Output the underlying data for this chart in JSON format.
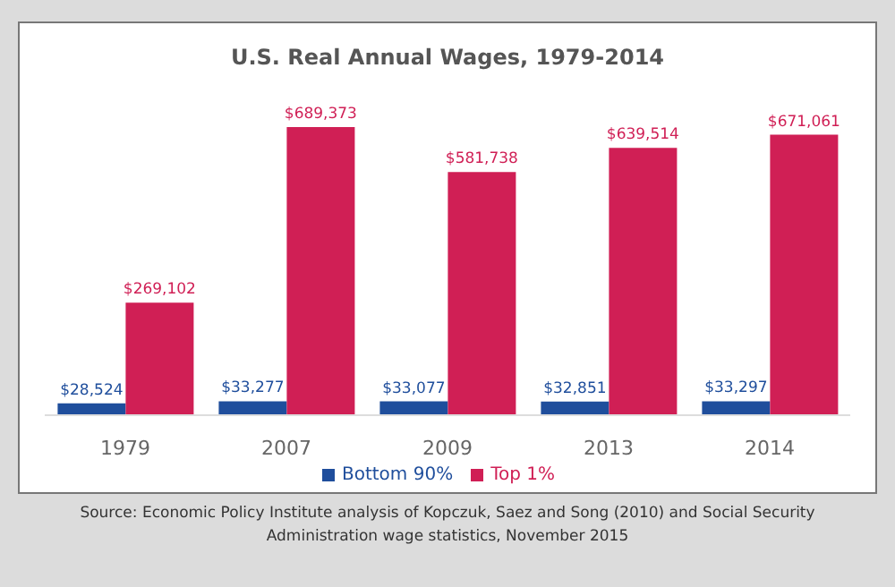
{
  "chart_data": {
    "type": "bar",
    "title": "U.S. Real Annual Wages, 1979-2014",
    "categories": [
      "1979",
      "2007",
      "2009",
      "2013",
      "2014"
    ],
    "series": [
      {
        "name": "Bottom 90%",
        "color": "#1f4e9c",
        "values": [
          28524,
          33277,
          33077,
          32851,
          33297
        ],
        "value_labels": [
          "$28,524",
          "$33,277",
          "$33,077",
          "$32,851",
          "$33,297"
        ]
      },
      {
        "name": "Top 1%",
        "color": "#d01f55",
        "values": [
          269102,
          689373,
          581738,
          639514,
          671061
        ],
        "value_labels": [
          "$269,102",
          "$689,373",
          "$581,738",
          "$639,514",
          "$671,061"
        ]
      }
    ],
    "legend": "bottom",
    "grid": false,
    "annotations": [
      "Source: Economic Policy Institute analysis of Kopczuk, Saez and Song (2010) and Social Security Administration wage statistics, November 2015"
    ]
  }
}
